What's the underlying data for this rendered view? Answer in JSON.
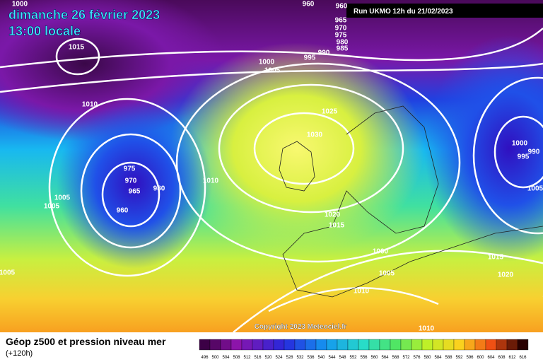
{
  "header": {
    "title": "dimanche 26 février 2023",
    "subtitle": "13:00 locale",
    "run": "Run UKMO 12h du 21/02/2023"
  },
  "copyright": "Copyright 2023 Meteociel.fr",
  "legend": {
    "title": "Géop z500 et pression niveau mer",
    "lead": "(+120h)",
    "scale": [
      496,
      500,
      504,
      508,
      512,
      516,
      520,
      524,
      528,
      532,
      536,
      540,
      544,
      548,
      552,
      556,
      560,
      564,
      568,
      572,
      576,
      580,
      584,
      588,
      592,
      596,
      600,
      604,
      608,
      612,
      616
    ]
  },
  "isobar_labels": [
    "1000",
    "960",
    "960",
    "965",
    "970",
    "975",
    "980",
    "985",
    "990",
    "995",
    "1000",
    "1005",
    "1015",
    "1010",
    "1025",
    "1030",
    "975",
    "970",
    "965",
    "980",
    "960",
    "1005",
    "1005",
    "1010",
    "1020",
    "1015",
    "1000",
    "1005",
    "1010",
    "1005",
    "1000",
    "990",
    "995",
    "1005",
    "1015",
    "1020",
    "1010"
  ]
}
